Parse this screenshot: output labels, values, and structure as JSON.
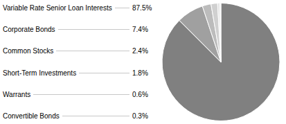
{
  "chart_data": {
    "type": "pie",
    "categories": [
      "Variable Rate Senior Loan Interests",
      "Corporate Bonds",
      "Common Stocks",
      "Short-Term Investments",
      "Warrants",
      "Convertible Bonds"
    ],
    "values": [
      87.5,
      7.4,
      2.4,
      1.8,
      0.6,
      0.3
    ],
    "value_labels": [
      "87.5%",
      "7.4%",
      "2.4%",
      "1.8%",
      "0.6%",
      "0.3%"
    ],
    "colors": [
      "#808080",
      "#a0a0a0",
      "#bcbcbc",
      "#d0d0d0",
      "#e2e2e2",
      "#efefef"
    ]
  }
}
